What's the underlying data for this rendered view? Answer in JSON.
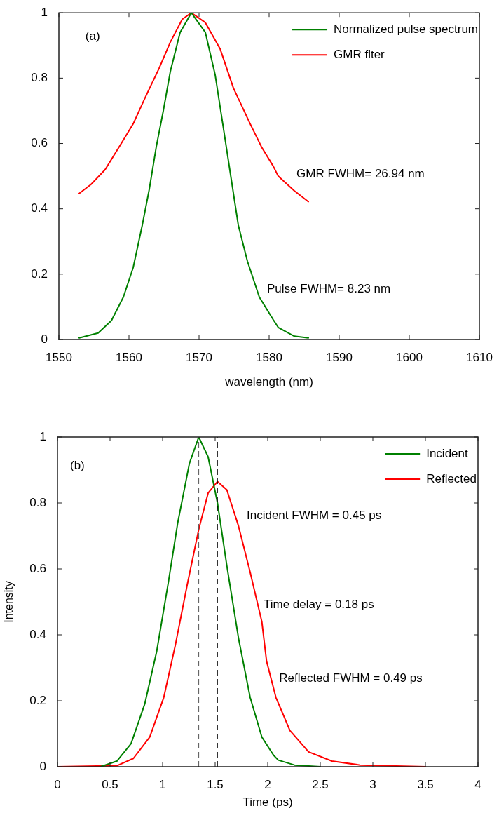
{
  "chart_data": [
    {
      "type": "line",
      "xlabel": "wavelength (nm)",
      "xlim": [
        1550,
        1610
      ],
      "xticks": [
        1550,
        1560,
        1570,
        1580,
        1590,
        1600,
        1610
      ],
      "ylim": [
        0,
        1
      ],
      "yticks": [
        0,
        0.2,
        0.4,
        0.6,
        0.8,
        1
      ],
      "grid": false,
      "legend": "top right",
      "marker": "none",
      "line_style": "solid",
      "annotations": [
        "(a)",
        "GMR FWHM= 26.94 nm",
        "Pulse FWHM= 8.23 nm"
      ],
      "series": [
        {
          "name": "Normalized pulse spectrum",
          "color": "#008000",
          "x": [
            1552.9,
            1555.6,
            1557.5,
            1559.2,
            1560.6,
            1561.9,
            1562.9,
            1563.9,
            1564.9,
            1565.9,
            1567.3,
            1568.9,
            1570.9,
            1572.3,
            1573.6,
            1574.6,
            1575.6,
            1576.9,
            1578.6,
            1580.6,
            1581.3,
            1583.6,
            1585.6
          ],
          "values": [
            0.005,
            0.02,
            0.058,
            0.13,
            0.22,
            0.35,
            0.46,
            0.59,
            0.7,
            0.82,
            0.94,
            1.0,
            0.94,
            0.81,
            0.63,
            0.49,
            0.35,
            0.24,
            0.13,
            0.06,
            0.037,
            0.01,
            0.005
          ]
        },
        {
          "name": "GMR flter",
          "color": "#ff0000",
          "x": [
            1552.9,
            1554.6,
            1556.6,
            1558.9,
            1560.6,
            1562.3,
            1564.3,
            1565.9,
            1567.6,
            1568.9,
            1570.9,
            1573.0,
            1574.9,
            1577.3,
            1578.9,
            1580.6,
            1581.3,
            1583.6,
            1585.6
          ],
          "values": [
            0.447,
            0.475,
            0.52,
            0.6,
            0.66,
            0.74,
            0.83,
            0.91,
            0.98,
            1.0,
            0.97,
            0.89,
            0.77,
            0.66,
            0.59,
            0.53,
            0.5,
            0.455,
            0.422
          ]
        }
      ]
    },
    {
      "type": "line",
      "xlabel": "Time (ps)",
      "ylabel": "Intensity",
      "xlim": [
        0,
        4
      ],
      "xticks": [
        0,
        0.5,
        1,
        1.5,
        2,
        2.5,
        3,
        3.5,
        4
      ],
      "ylim": [
        0,
        1
      ],
      "yticks": [
        0,
        0.2,
        0.4,
        0.6,
        0.8,
        1
      ],
      "grid": false,
      "legend": "top right",
      "marker": "none",
      "line_style": "solid",
      "annotations": [
        "(b)",
        "Incident FWHM = 0.45 ps",
        "Time delay = 0.18 ps",
        "Reflected FWHM = 0.49 ps"
      ],
      "ref_lines": [
        {
          "axis": "x",
          "value": 1.344,
          "label": null,
          "color": "#555555",
          "line_style": "dashed"
        },
        {
          "axis": "x",
          "value": 1.522,
          "label": null,
          "color": "#000000",
          "line_style": "dashed"
        }
      ],
      "series": [
        {
          "name": "Incident",
          "color": "#008000",
          "x": [
            0.41,
            0.565,
            0.7,
            0.83,
            0.944,
            1.055,
            1.144,
            1.255,
            1.344,
            1.433,
            1.522,
            1.611,
            1.722,
            1.833,
            1.944,
            2.055,
            2.1,
            2.255,
            2.5
          ],
          "values": [
            0,
            0.017,
            0.07,
            0.19,
            0.35,
            0.56,
            0.74,
            0.92,
            1.0,
            0.94,
            0.8,
            0.61,
            0.39,
            0.21,
            0.09,
            0.035,
            0.02,
            0.005,
            0
          ]
        },
        {
          "name": "Reflected",
          "color": "#ff0000",
          "x": [
            0,
            0.565,
            0.722,
            0.878,
            1.011,
            1.122,
            1.233,
            1.344,
            1.433,
            1.522,
            1.611,
            1.722,
            1.833,
            1.944,
            1.989,
            2.078,
            2.211,
            2.389,
            2.611,
            2.878,
            3.5
          ],
          "values": [
            0,
            0.003,
            0.025,
            0.09,
            0.21,
            0.37,
            0.55,
            0.72,
            0.83,
            0.865,
            0.84,
            0.73,
            0.59,
            0.44,
            0.32,
            0.21,
            0.11,
            0.045,
            0.017,
            0.005,
            0
          ]
        }
      ]
    }
  ]
}
